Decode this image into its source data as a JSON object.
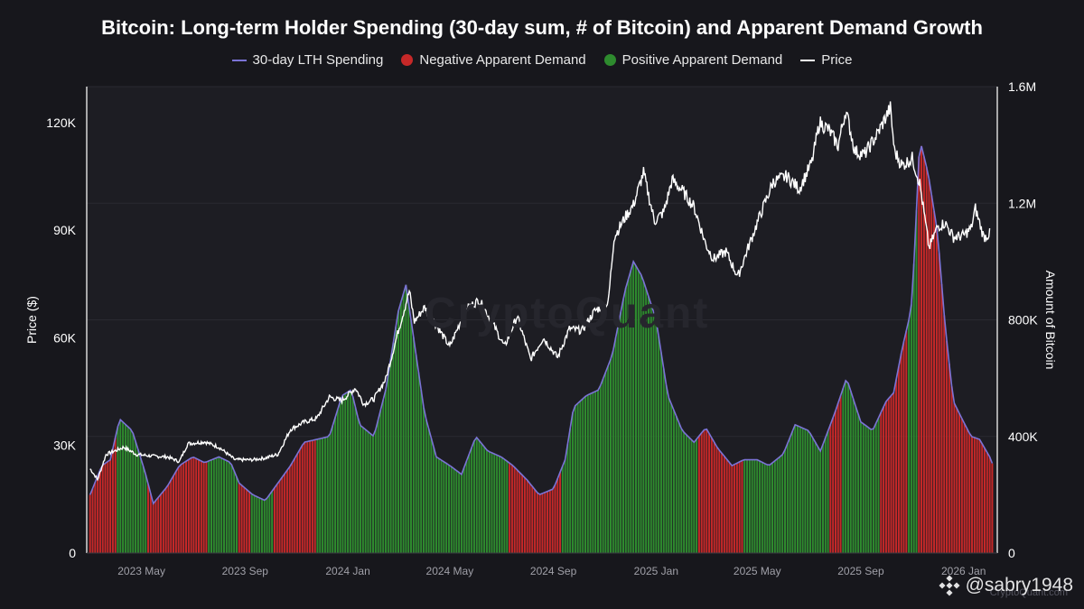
{
  "title": "Bitcoin: Long-term Holder Spending (30-day sum, # of Bitcoin) and Apparent Demand Growth",
  "legend": [
    {
      "label": "30-day LTH Spending",
      "color": "#7b73d6",
      "kind": "line"
    },
    {
      "label": "Negative Apparent Demand",
      "color": "#c62828",
      "kind": "dot"
    },
    {
      "label": "Positive Apparent Demand",
      "color": "#2e8b2e",
      "kind": "dot"
    },
    {
      "label": "Price",
      "color": "#ffffff",
      "kind": "line"
    }
  ],
  "watermark": "CryptoQuant",
  "attribution": "CryptoQuant.com",
  "handle": "@sabry1948",
  "chart_data": {
    "type": "bar",
    "title": "Bitcoin: Long-term Holder Spending (30-day sum, # of Bitcoin) and Apparent Demand Growth",
    "ylabel_left": "Price ($)",
    "ylabel_right": "Amount of Bitcoin",
    "ylim_left": [
      0,
      130000
    ],
    "ylim_right": [
      0,
      1600000
    ],
    "yticks_left": [
      0,
      30000,
      60000,
      90000,
      120000
    ],
    "yticks_left_labels": [
      "0",
      "30K",
      "60K",
      "90K",
      "120K"
    ],
    "yticks_right": [
      0,
      400000,
      800000,
      1200000,
      1600000
    ],
    "yticks_right_labels": [
      "0",
      "400K",
      "800K",
      "1.2M",
      "1.6M"
    ],
    "xlim": [
      "2023-02-25",
      "2026-02-10"
    ],
    "xticks": [
      "2023-05-01",
      "2023-09-01",
      "2024-01-01",
      "2024-05-01",
      "2024-09-01",
      "2025-01-01",
      "2025-05-01",
      "2025-09-01",
      "2026-01-01"
    ],
    "xtick_labels": [
      "2023 May",
      "2023 Sep",
      "2024 Jan",
      "2024 May",
      "2024 Sep",
      "2025 Jan",
      "2025 May",
      "2025 Sep",
      "2026 Jan"
    ],
    "lth_spending": {
      "name": "30-day LTH Spending",
      "dates": [
        "2023-03-01",
        "2023-03-15",
        "2023-03-25",
        "2023-04-05",
        "2023-04-20",
        "2023-05-05",
        "2023-05-15",
        "2023-06-01",
        "2023-06-15",
        "2023-07-01",
        "2023-07-15",
        "2023-08-01",
        "2023-08-15",
        "2023-08-25",
        "2023-09-10",
        "2023-09-25",
        "2023-10-10",
        "2023-10-25",
        "2023-11-10",
        "2023-11-25",
        "2023-12-10",
        "2023-12-25",
        "2024-01-05",
        "2024-01-15",
        "2024-02-01",
        "2024-02-15",
        "2024-03-01",
        "2024-03-10",
        "2024-03-18",
        "2024-04-01",
        "2024-04-15",
        "2024-05-01",
        "2024-05-15",
        "2024-06-01",
        "2024-06-15",
        "2024-07-01",
        "2024-07-15",
        "2024-08-01",
        "2024-08-15",
        "2024-09-01",
        "2024-09-15",
        "2024-09-25",
        "2024-10-10",
        "2024-10-25",
        "2024-11-10",
        "2024-11-25",
        "2024-12-05",
        "2024-12-15",
        "2025-01-01",
        "2025-01-15",
        "2025-02-01",
        "2025-02-15",
        "2025-03-01",
        "2025-03-15",
        "2025-04-01",
        "2025-04-15",
        "2025-05-01",
        "2025-05-15",
        "2025-06-01",
        "2025-06-15",
        "2025-07-01",
        "2025-07-15",
        "2025-08-01",
        "2025-08-15",
        "2025-09-01",
        "2025-09-15",
        "2025-10-01",
        "2025-10-10",
        "2025-10-20",
        "2025-10-28",
        "2025-11-01",
        "2025-11-10",
        "2025-11-20",
        "2025-12-01",
        "2025-12-10",
        "2025-12-20",
        "2026-01-01",
        "2026-01-10",
        "2026-01-20",
        "2026-02-01",
        "2026-02-05"
      ],
      "values": [
        200000,
        300000,
        320000,
        460000,
        420000,
        280000,
        170000,
        230000,
        300000,
        330000,
        310000,
        330000,
        310000,
        240000,
        200000,
        180000,
        240000,
        300000,
        380000,
        390000,
        400000,
        540000,
        560000,
        440000,
        400000,
        560000,
        830000,
        920000,
        760000,
        480000,
        330000,
        300000,
        270000,
        400000,
        350000,
        330000,
        300000,
        250000,
        200000,
        220000,
        320000,
        500000,
        540000,
        560000,
        680000,
        900000,
        1000000,
        950000,
        800000,
        540000,
        420000,
        380000,
        430000,
        360000,
        300000,
        320000,
        320000,
        300000,
        340000,
        440000,
        420000,
        350000,
        480000,
        600000,
        450000,
        420000,
        520000,
        550000,
        700000,
        800000,
        870000,
        1420000,
        1300000,
        1100000,
        780000,
        520000,
        450000,
        400000,
        390000,
        330000,
        300000
      ]
    },
    "price": {
      "name": "Price",
      "dates": [
        "2023-03-01",
        "2023-03-10",
        "2023-03-20",
        "2023-04-10",
        "2023-04-25",
        "2023-05-15",
        "2023-06-01",
        "2023-06-15",
        "2023-06-25",
        "2023-07-15",
        "2023-08-01",
        "2023-08-20",
        "2023-09-10",
        "2023-09-25",
        "2023-10-10",
        "2023-10-25",
        "2023-11-10",
        "2023-11-25",
        "2023-12-10",
        "2023-12-25",
        "2024-01-10",
        "2024-01-20",
        "2024-02-01",
        "2024-02-15",
        "2024-03-01",
        "2024-03-14",
        "2024-03-20",
        "2024-04-01",
        "2024-04-15",
        "2024-05-01",
        "2024-05-20",
        "2024-06-05",
        "2024-06-20",
        "2024-07-05",
        "2024-07-20",
        "2024-08-05",
        "2024-08-20",
        "2024-09-06",
        "2024-09-20",
        "2024-10-05",
        "2024-10-20",
        "2024-11-05",
        "2024-11-12",
        "2024-11-25",
        "2024-12-05",
        "2024-12-17",
        "2024-12-30",
        "2025-01-10",
        "2025-01-20",
        "2025-02-01",
        "2025-02-15",
        "2025-03-01",
        "2025-03-10",
        "2025-03-25",
        "2025-04-08",
        "2025-04-20",
        "2025-05-05",
        "2025-05-20",
        "2025-06-05",
        "2025-06-20",
        "2025-07-05",
        "2025-07-14",
        "2025-07-25",
        "2025-08-05",
        "2025-08-14",
        "2025-08-25",
        "2025-09-05",
        "2025-09-20",
        "2025-10-06",
        "2025-10-11",
        "2025-10-20",
        "2025-11-01",
        "2025-11-10",
        "2025-11-21",
        "2025-12-01",
        "2025-12-10",
        "2025-12-20",
        "2026-01-01",
        "2026-01-10",
        "2026-01-15",
        "2026-01-25",
        "2026-02-01"
      ],
      "values": [
        23500,
        20500,
        27500,
        29500,
        27500,
        27000,
        26800,
        25500,
        30500,
        31000,
        29500,
        26000,
        26000,
        26500,
        27500,
        34500,
        36500,
        37500,
        43500,
        42500,
        46000,
        41500,
        43000,
        48500,
        62000,
        73000,
        64500,
        68500,
        63500,
        57500,
        68000,
        70500,
        64500,
        57500,
        66000,
        54000,
        60000,
        54500,
        62500,
        62000,
        67500,
        69500,
        88000,
        93500,
        97000,
        106000,
        92500,
        95000,
        104000,
        101000,
        96500,
        86000,
        82000,
        84000,
        77000,
        85000,
        94500,
        103500,
        105000,
        101500,
        109000,
        120000,
        118000,
        113500,
        123500,
        112000,
        111000,
        116500,
        124000,
        112000,
        108000,
        110000,
        103000,
        85000,
        91000,
        92000,
        88000,
        88500,
        90500,
        96000,
        88000,
        89000
      ]
    },
    "demand_segments": [
      {
        "start": "2023-03-01",
        "end": "2023-04-01",
        "sign": "negative"
      },
      {
        "start": "2023-04-01",
        "end": "2023-05-07",
        "sign": "positive"
      },
      {
        "start": "2023-05-07",
        "end": "2023-07-20",
        "sign": "negative"
      },
      {
        "start": "2023-07-20",
        "end": "2023-08-25",
        "sign": "positive"
      },
      {
        "start": "2023-08-25",
        "end": "2023-09-08",
        "sign": "negative"
      },
      {
        "start": "2023-09-08",
        "end": "2023-10-05",
        "sign": "positive"
      },
      {
        "start": "2023-10-05",
        "end": "2023-11-25",
        "sign": "negative"
      },
      {
        "start": "2023-11-25",
        "end": "2024-04-25",
        "sign": "positive"
      },
      {
        "start": "2024-04-25",
        "end": "2024-07-10",
        "sign": "positive"
      },
      {
        "start": "2024-07-10",
        "end": "2024-09-10",
        "sign": "negative"
      },
      {
        "start": "2024-09-10",
        "end": "2024-10-01",
        "sign": "positive"
      },
      {
        "start": "2024-10-01",
        "end": "2025-02-20",
        "sign": "positive"
      },
      {
        "start": "2025-02-20",
        "end": "2025-04-15",
        "sign": "negative"
      },
      {
        "start": "2025-04-15",
        "end": "2025-07-25",
        "sign": "positive"
      },
      {
        "start": "2025-07-25",
        "end": "2025-08-10",
        "sign": "negative"
      },
      {
        "start": "2025-08-10",
        "end": "2025-09-25",
        "sign": "positive"
      },
      {
        "start": "2025-09-25",
        "end": "2025-10-28",
        "sign": "negative"
      },
      {
        "start": "2025-10-28",
        "end": "2025-11-08",
        "sign": "positive"
      },
      {
        "start": "2025-11-08",
        "end": "2025-12-10",
        "sign": "negative"
      },
      {
        "start": "2025-12-10",
        "end": "2026-02-05",
        "sign": "negative"
      }
    ]
  }
}
